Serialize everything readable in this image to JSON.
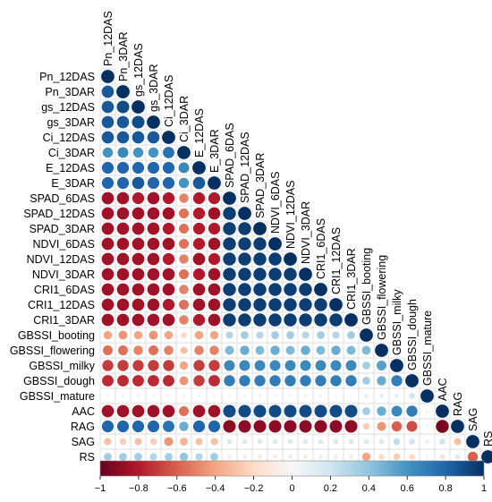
{
  "chart_data": {
    "type": "heatmap",
    "subtype": "correlation-circle-lower-triangle",
    "variables": [
      "Pn_12DAS",
      "Pn_3DAR",
      "gs_12DAS",
      "gs_3DAR",
      "Ci_12DAS",
      "Ci_3DAR",
      "E_12DAS",
      "E_3DAR",
      "SPAD_6DAS",
      "SPAD_12DAS",
      "SPAD_3DAR",
      "NDVI_6DAS",
      "NDVI_12DAS",
      "NDVI_3DAR",
      "CRI1_6DAS",
      "CRI1_12DAS",
      "CRI1_3DAR",
      "GBSSI_booting",
      "GBSSI_flowering",
      "GBSSI_milky",
      "GBSSI_dough",
      "GBSSI_mature",
      "AAC",
      "RAG",
      "SAG",
      "RS"
    ],
    "colorbar": {
      "ticks": [
        "−1",
        "−0.8",
        "−0.6",
        "−0.4",
        "−0.2",
        "0",
        "0.2",
        "0.4",
        "0.6",
        "0.8",
        "1"
      ],
      "range": [
        -1,
        1
      ]
    },
    "colors": {
      "negative": "#67001f",
      "neutral": "#f7f7f7",
      "positive": "#053061"
    },
    "matrix": [
      [
        1
      ],
      [
        0.85,
        1
      ],
      [
        0.85,
        0.9,
        1
      ],
      [
        0.85,
        0.85,
        0.9,
        1
      ],
      [
        0.85,
        0.85,
        0.85,
        0.85,
        1
      ],
      [
        0.6,
        0.65,
        0.6,
        0.6,
        0.75,
        1
      ],
      [
        0.8,
        0.8,
        0.8,
        0.8,
        0.8,
        0.65,
        1
      ],
      [
        0.8,
        0.8,
        0.85,
        0.8,
        0.8,
        0.6,
        0.85,
        1
      ],
      [
        -0.85,
        -0.85,
        -0.8,
        -0.85,
        -0.8,
        -0.5,
        -0.8,
        -0.8,
        1
      ],
      [
        -0.85,
        -0.85,
        -0.85,
        -0.85,
        -0.85,
        -0.55,
        -0.8,
        -0.85,
        0.95,
        1
      ],
      [
        -0.85,
        -0.85,
        -0.85,
        -0.85,
        -0.8,
        -0.55,
        -0.8,
        -0.8,
        0.95,
        0.95,
        1
      ],
      [
        -0.85,
        -0.85,
        -0.85,
        -0.85,
        -0.85,
        -0.55,
        -0.8,
        -0.85,
        0.95,
        0.95,
        0.95,
        1
      ],
      [
        -0.85,
        -0.85,
        -0.85,
        -0.85,
        -0.8,
        -0.5,
        -0.85,
        -0.8,
        0.95,
        0.95,
        0.95,
        0.95,
        1
      ],
      [
        -0.85,
        -0.85,
        -0.85,
        -0.85,
        -0.85,
        -0.55,
        -0.8,
        -0.85,
        0.95,
        0.95,
        0.95,
        0.95,
        0.95,
        1
      ],
      [
        -0.85,
        -0.85,
        -0.85,
        -0.85,
        -0.85,
        -0.5,
        -0.85,
        -0.85,
        0.95,
        0.95,
        0.95,
        0.95,
        0.95,
        0.95,
        1
      ],
      [
        -0.85,
        -0.85,
        -0.85,
        -0.85,
        -0.8,
        -0.55,
        -0.85,
        -0.85,
        0.95,
        0.95,
        0.95,
        0.95,
        0.95,
        0.95,
        0.95,
        1
      ],
      [
        -0.85,
        -0.85,
        -0.85,
        -0.85,
        -0.85,
        -0.5,
        -0.8,
        -0.85,
        0.95,
        0.95,
        0.95,
        0.95,
        0.95,
        0.95,
        0.95,
        0.95,
        1
      ],
      [
        -0.4,
        -0.45,
        -0.4,
        -0.45,
        -0.4,
        -0.2,
        -0.4,
        -0.4,
        0.3,
        0.35,
        0.3,
        0.35,
        0.35,
        0.3,
        0.35,
        0.3,
        0.35,
        1
      ],
      [
        -0.55,
        -0.55,
        -0.5,
        -0.55,
        -0.5,
        -0.3,
        -0.5,
        -0.5,
        0.45,
        0.5,
        0.45,
        0.5,
        0.45,
        0.5,
        0.45,
        0.5,
        0.45,
        0.45,
        1
      ],
      [
        -0.7,
        -0.7,
        -0.7,
        -0.7,
        -0.7,
        -0.4,
        -0.7,
        -0.7,
        0.65,
        0.65,
        0.65,
        0.65,
        0.65,
        0.65,
        0.65,
        0.65,
        0.65,
        0.35,
        0.55,
        1
      ],
      [
        -0.75,
        -0.75,
        -0.75,
        -0.75,
        -0.75,
        -0.45,
        -0.7,
        -0.75,
        0.7,
        0.7,
        0.7,
        0.7,
        0.7,
        0.7,
        0.7,
        0.7,
        0.7,
        0.35,
        0.5,
        0.7,
        1
      ],
      [
        0.05,
        0.05,
        0.05,
        0.05,
        0.05,
        0.05,
        0.05,
        0.05,
        -0.05,
        -0.05,
        -0.05,
        -0.05,
        -0.05,
        -0.05,
        -0.05,
        -0.05,
        -0.05,
        0.1,
        0.1,
        0.1,
        0.2,
        1
      ],
      [
        -0.85,
        -0.85,
        -0.85,
        -0.85,
        -0.85,
        -0.55,
        -0.85,
        -0.85,
        0.9,
        0.9,
        0.9,
        0.9,
        0.9,
        0.9,
        0.9,
        0.9,
        0.9,
        0.35,
        0.5,
        0.65,
        0.7,
        -0.05,
        1
      ],
      [
        0.8,
        0.8,
        0.8,
        0.8,
        0.75,
        0.5,
        0.8,
        0.8,
        -0.9,
        -0.9,
        -0.9,
        -0.9,
        -0.9,
        -0.9,
        -0.9,
        -0.9,
        -0.9,
        -0.25,
        -0.45,
        -0.6,
        -0.65,
        0.05,
        -0.95,
        1
      ],
      [
        -0.3,
        -0.25,
        -0.3,
        -0.25,
        -0.45,
        -0.35,
        -0.3,
        -0.3,
        0.15,
        0.15,
        0.15,
        0.15,
        0.15,
        0.15,
        0.15,
        0.15,
        0.15,
        0.15,
        0.15,
        0.25,
        0.2,
        0.1,
        0.2,
        -0.3,
        1
      ],
      [
        0.35,
        0.35,
        0.35,
        0.3,
        0.35,
        0.4,
        0.3,
        0.35,
        -0.1,
        -0.1,
        -0.1,
        -0.1,
        -0.1,
        -0.1,
        -0.1,
        -0.1,
        -0.1,
        -0.4,
        -0.2,
        -0.25,
        -0.2,
        0.05,
        -0.15,
        0.15,
        -0.6,
        1
      ]
    ]
  }
}
